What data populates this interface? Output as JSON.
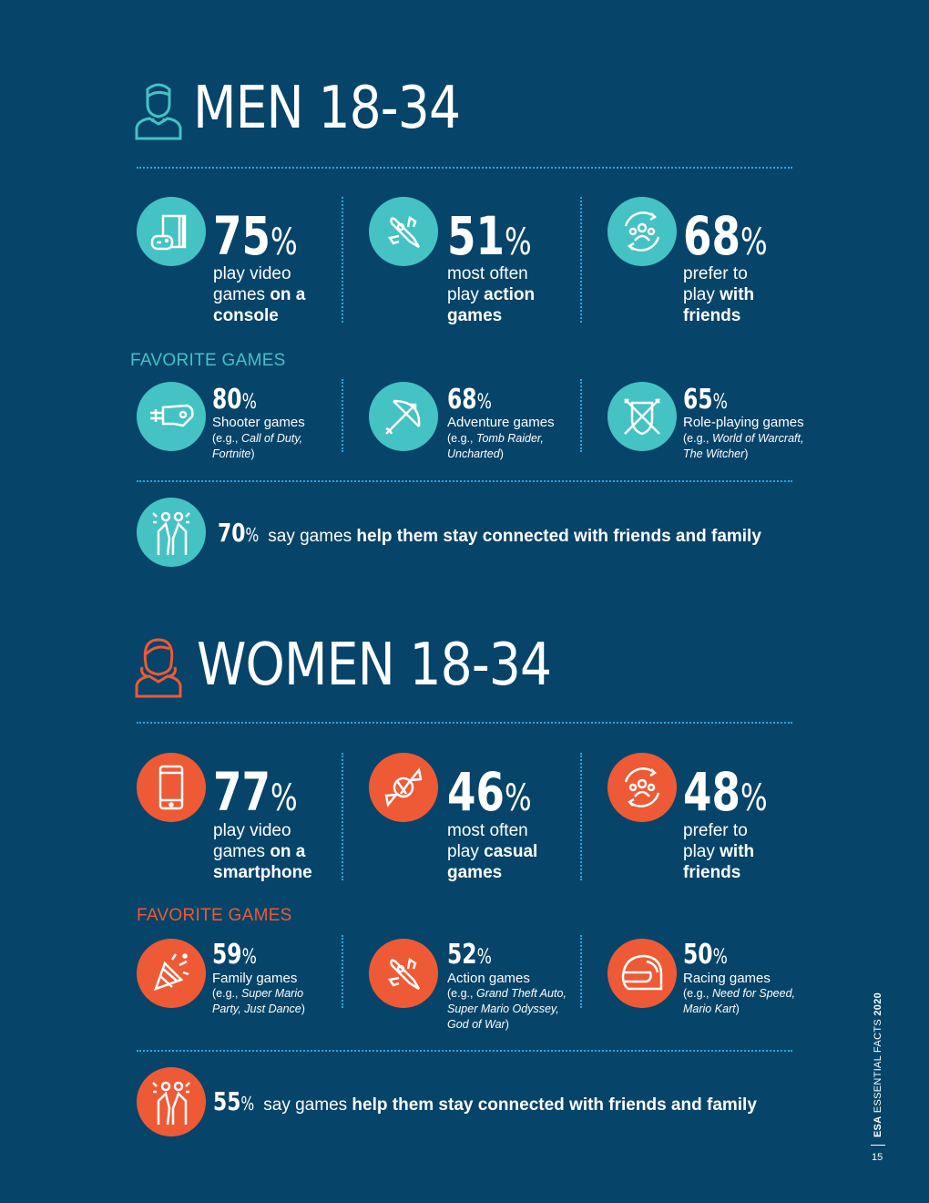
{
  "colors": {
    "background": "#064469",
    "teal": "#45c2c4",
    "orange": "#ee5a35",
    "dotted": "#2aa7e0"
  },
  "men": {
    "title": "MEN 18-34",
    "stats": [
      {
        "value": "75",
        "sign": "%",
        "text_plain": "play video games ",
        "text_bold": "on a console",
        "icon": "console-icon"
      },
      {
        "value": "51",
        "sign": "%",
        "text_plain": "most often play ",
        "text_bold": "action games",
        "icon": "rocket-icon"
      },
      {
        "value": "68",
        "sign": "%",
        "text_plain": "prefer to play ",
        "text_bold": "with friends",
        "icon": "group-icon"
      }
    ],
    "favorites_heading": "FAVORITE GAMES",
    "favorites": [
      {
        "value": "80",
        "sign": "%",
        "name": "Shooter games",
        "ex_prefix": "(e.g., ",
        "ex_italic": "Call of Duty, Fortnite",
        "ex_suffix": ")",
        "icon": "blaster-icon"
      },
      {
        "value": "68",
        "sign": "%",
        "name": "Adventure games",
        "ex_prefix": "(e.g., ",
        "ex_italic": "Tomb Raider, Uncharted",
        "ex_suffix": ")",
        "icon": "bow-arrow-icon"
      },
      {
        "value": "65",
        "sign": "%",
        "name": "Role-playing games",
        "ex_prefix": "(e.g., ",
        "ex_italic": "World of Warcraft, The Witcher",
        "ex_suffix": ")",
        "icon": "shield-swords-icon"
      }
    ],
    "connected": {
      "value": "70",
      "sign": "%",
      "plain": " say games ",
      "bold": "help them stay connected with friends and family",
      "icon": "friends-icon"
    }
  },
  "women": {
    "title": "WOMEN 18-34",
    "stats": [
      {
        "value": "77",
        "sign": "%",
        "text_plain": "play video games ",
        "text_bold": "on a smartphone",
        "icon": "smartphone-icon"
      },
      {
        "value": "46",
        "sign": "%",
        "text_plain": "most often play ",
        "text_bold": "casual games",
        "icon": "candy-icon"
      },
      {
        "value": "48",
        "sign": "%",
        "text_plain": "prefer to play ",
        "text_bold": "with friends",
        "icon": "group-icon"
      }
    ],
    "favorites_heading": "FAVORITE GAMES",
    "favorites": [
      {
        "value": "59",
        "sign": "%",
        "name": "Family games",
        "ex_prefix": "(e.g., ",
        "ex_italic": "Super Mario Party, Just Dance",
        "ex_suffix": ")",
        "icon": "party-popper-icon"
      },
      {
        "value": "52",
        "sign": "%",
        "name": "Action games",
        "ex_prefix": "(e.g., ",
        "ex_italic": "Grand Theft Auto, Super Mario Odyssey, God of War",
        "ex_suffix": ")",
        "icon": "rocket-icon"
      },
      {
        "value": "50",
        "sign": "%",
        "name": "Racing games",
        "ex_prefix": "(e.g., ",
        "ex_italic": "Need for Speed, Mario Kart",
        "ex_suffix": ")",
        "icon": "helmet-icon"
      }
    ],
    "connected": {
      "value": "55",
      "sign": "%",
      "plain": " say games ",
      "bold": "help them stay connected with friends and family",
      "icon": "friends-icon"
    }
  },
  "footer": {
    "brand": "ESA",
    "publication": " ESSENTIAL FACTS ",
    "year": "2020",
    "page_number": "15"
  }
}
